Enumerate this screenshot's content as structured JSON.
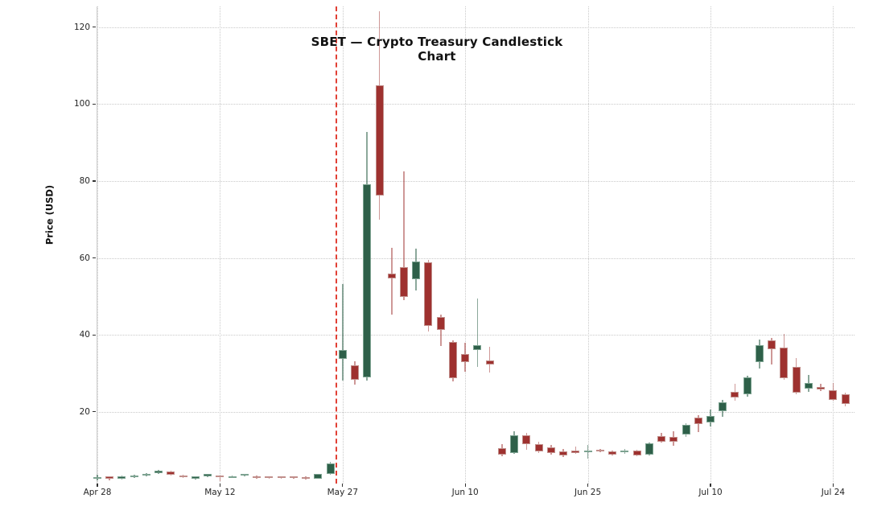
{
  "title": "SBET — Crypto Treasury Candlestick Chart",
  "chart_data": {
    "type": "candlestick",
    "title": "SBET — Crypto Treasury Candlestick Chart",
    "xlabel": "",
    "ylabel": "Price (USD)",
    "ylim": [
      1.3,
      125.5
    ],
    "grid": true,
    "legend_position": "none",
    "up_color": "#2e6049",
    "down_color": "#9e312f",
    "event_line_color": "#e0362b",
    "y_ticks": [
      20,
      40,
      60,
      80,
      100,
      120
    ],
    "x_ticks": [
      {
        "label": "Apr 28",
        "index": 0
      },
      {
        "label": "May 12",
        "index": 10
      },
      {
        "label": "May 27",
        "index": 20
      },
      {
        "label": "Jun 10",
        "index": 30
      },
      {
        "label": "Jun 25",
        "index": 40
      },
      {
        "label": "Jul 10",
        "index": 50
      },
      {
        "label": "Jul 24",
        "index": 60
      }
    ],
    "event_line": {
      "position_index": 19.45,
      "style": "dashed"
    },
    "candles": [
      {
        "date": "Apr 28",
        "open": 2.7,
        "high": 3.6,
        "low": 2.2,
        "close": 3.0
      },
      {
        "date": "Apr 29",
        "open": 3.1,
        "high": 3.3,
        "low": 2.2,
        "close": 2.5
      },
      {
        "date": "Apr 30",
        "open": 2.6,
        "high": 3.4,
        "low": 2.4,
        "close": 3.2
      },
      {
        "date": "May 1",
        "open": 2.9,
        "high": 3.7,
        "low": 2.7,
        "close": 3.5
      },
      {
        "date": "May 2",
        "open": 3.4,
        "high": 4.1,
        "low": 3.2,
        "close": 3.9
      },
      {
        "date": "May 5",
        "open": 4.1,
        "high": 4.9,
        "low": 3.8,
        "close": 4.7
      },
      {
        "date": "May 6",
        "open": 4.5,
        "high": 4.7,
        "low": 3.4,
        "close": 3.6
      },
      {
        "date": "May 7",
        "open": 3.4,
        "high": 3.6,
        "low": 2.8,
        "close": 3.0
      },
      {
        "date": "May 8",
        "open": 2.5,
        "high": 3.2,
        "low": 2.3,
        "close": 3.1
      },
      {
        "date": "May 9",
        "open": 3.1,
        "high": 3.9,
        "low": 2.9,
        "close": 3.8
      },
      {
        "date": "May 12",
        "open": 3.4,
        "high": 3.5,
        "low": 2.0,
        "close": 3.0
      },
      {
        "date": "May 13",
        "open": 2.9,
        "high": 3.4,
        "low": 2.7,
        "close": 3.3
      },
      {
        "date": "May 14",
        "open": 3.4,
        "high": 3.9,
        "low": 3.2,
        "close": 3.8
      },
      {
        "date": "May 15",
        "open": 3.3,
        "high": 3.4,
        "low": 2.5,
        "close": 2.7
      },
      {
        "date": "May 16",
        "open": 3.1,
        "high": 3.2,
        "low": 2.6,
        "close": 2.7
      },
      {
        "date": "May 19",
        "open": 3.1,
        "high": 3.2,
        "low": 2.6,
        "close": 2.7
      },
      {
        "date": "May 20",
        "open": 3.2,
        "high": 3.3,
        "low": 2.6,
        "close": 2.7
      },
      {
        "date": "May 21",
        "open": 3.0,
        "high": 3.1,
        "low": 2.4,
        "close": 2.6
      },
      {
        "date": "May 22",
        "open": 2.6,
        "high": 3.9,
        "low": 2.5,
        "close": 3.8
      },
      {
        "date": "May 23",
        "open": 3.8,
        "high": 6.9,
        "low": 3.6,
        "close": 6.6
      },
      {
        "date": "May 27",
        "open": 33.8,
        "high": 53.2,
        "low": 28.2,
        "close": 36.0
      },
      {
        "date": "May 28",
        "open": 32.0,
        "high": 33.1,
        "low": 27.1,
        "close": 28.2
      },
      {
        "date": "May 29",
        "open": 28.9,
        "high": 92.7,
        "low": 28.0,
        "close": 79.2
      },
      {
        "date": "May 30",
        "open": 104.9,
        "high": 124.1,
        "low": 69.9,
        "close": 76.3
      },
      {
        "date": "Jun 2",
        "open": 55.9,
        "high": 62.6,
        "low": 45.2,
        "close": 54.7
      },
      {
        "date": "Jun 3",
        "open": 57.6,
        "high": 82.5,
        "low": 49.1,
        "close": 49.8
      },
      {
        "date": "Jun 4",
        "open": 54.5,
        "high": 62.4,
        "low": 51.5,
        "close": 59.0
      },
      {
        "date": "Jun 5",
        "open": 58.9,
        "high": 59.4,
        "low": 40.8,
        "close": 42.3
      },
      {
        "date": "Jun 6",
        "open": 44.7,
        "high": 45.2,
        "low": 37.1,
        "close": 41.3
      },
      {
        "date": "Jun 9",
        "open": 38.1,
        "high": 38.6,
        "low": 27.9,
        "close": 28.7
      },
      {
        "date": "Jun 10",
        "open": 35.1,
        "high": 37.9,
        "low": 30.4,
        "close": 33.0
      },
      {
        "date": "Jun 11",
        "open": 36.0,
        "high": 49.5,
        "low": 31.6,
        "close": 37.4
      },
      {
        "date": "Jun 12",
        "open": 33.4,
        "high": 36.9,
        "low": 30.1,
        "close": 32.2
      },
      {
        "date": "Jun 13",
        "open": 10.5,
        "high": 11.6,
        "low": 8.5,
        "close": 8.9
      },
      {
        "date": "Jun 16",
        "open": 9.3,
        "high": 14.9,
        "low": 9.1,
        "close": 13.9
      },
      {
        "date": "Jun 17",
        "open": 13.9,
        "high": 14.4,
        "low": 10.0,
        "close": 11.6
      },
      {
        "date": "Jun 18",
        "open": 11.6,
        "high": 12.1,
        "low": 9.3,
        "close": 9.7
      },
      {
        "date": "Jun 20",
        "open": 10.7,
        "high": 11.3,
        "low": 8.9,
        "close": 9.2
      },
      {
        "date": "Jun 23",
        "open": 9.7,
        "high": 10.3,
        "low": 8.3,
        "close": 8.6
      },
      {
        "date": "Jun 24",
        "open": 10.0,
        "high": 10.9,
        "low": 9.0,
        "close": 9.3
      },
      {
        "date": "Jun 25",
        "open": 9.5,
        "high": 11.4,
        "low": 7.7,
        "close": 10.0
      },
      {
        "date": "Jun 26",
        "open": 10.2,
        "high": 10.4,
        "low": 9.4,
        "close": 9.7
      },
      {
        "date": "Jun 27",
        "open": 9.7,
        "high": 10.0,
        "low": 8.7,
        "close": 8.9
      },
      {
        "date": "Jun 30",
        "open": 9.4,
        "high": 10.4,
        "low": 9.1,
        "close": 9.9
      },
      {
        "date": "Jul 1",
        "open": 9.9,
        "high": 10.2,
        "low": 8.4,
        "close": 8.6
      },
      {
        "date": "Jul 2",
        "open": 8.9,
        "high": 11.9,
        "low": 8.6,
        "close": 11.7
      },
      {
        "date": "Jul 3",
        "open": 13.7,
        "high": 14.6,
        "low": 12.0,
        "close": 12.2
      },
      {
        "date": "Jul 7",
        "open": 13.4,
        "high": 15.0,
        "low": 11.1,
        "close": 12.2
      },
      {
        "date": "Jul 8",
        "open": 14.1,
        "high": 17.1,
        "low": 13.4,
        "close": 16.5
      },
      {
        "date": "Jul 9",
        "open": 18.5,
        "high": 19.2,
        "low": 14.8,
        "close": 16.7
      },
      {
        "date": "Jul 10",
        "open": 17.2,
        "high": 20.6,
        "low": 16.1,
        "close": 18.9
      },
      {
        "date": "Jul 11",
        "open": 20.1,
        "high": 23.1,
        "low": 18.6,
        "close": 22.4
      },
      {
        "date": "Jul 14",
        "open": 25.1,
        "high": 27.3,
        "low": 22.8,
        "close": 23.7
      },
      {
        "date": "Jul 15",
        "open": 24.5,
        "high": 29.4,
        "low": 24.0,
        "close": 28.9
      },
      {
        "date": "Jul 16",
        "open": 33.0,
        "high": 38.8,
        "low": 31.2,
        "close": 37.2
      },
      {
        "date": "Jul 17",
        "open": 38.6,
        "high": 39.2,
        "low": 32.3,
        "close": 36.2
      },
      {
        "date": "Jul 18",
        "open": 36.7,
        "high": 40.2,
        "low": 28.3,
        "close": 28.7
      },
      {
        "date": "Jul 21",
        "open": 31.6,
        "high": 33.9,
        "low": 24.5,
        "close": 24.9
      },
      {
        "date": "Jul 22",
        "open": 26.1,
        "high": 29.6,
        "low": 25.1,
        "close": 27.5
      },
      {
        "date": "Jul 23",
        "open": 26.4,
        "high": 27.2,
        "low": 25.4,
        "close": 25.8
      },
      {
        "date": "Jul 24",
        "open": 25.6,
        "high": 27.5,
        "low": 22.9,
        "close": 23.1
      },
      {
        "date": "Jul 25",
        "open": 24.5,
        "high": 24.9,
        "low": 21.4,
        "close": 22.1
      }
    ]
  }
}
